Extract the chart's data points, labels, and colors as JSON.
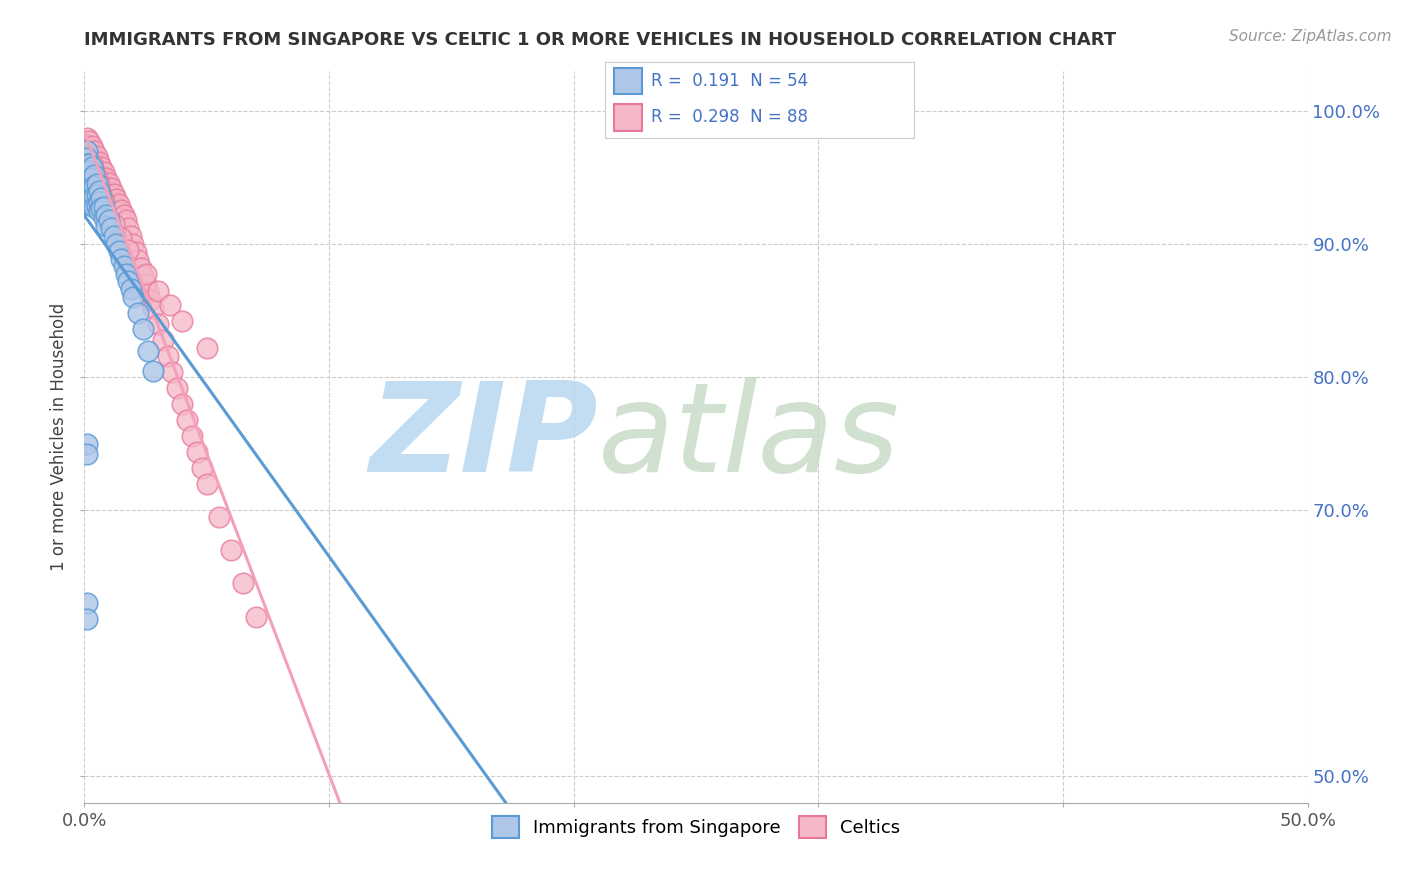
{
  "title": "IMMIGRANTS FROM SINGAPORE VS CELTIC 1 OR MORE VEHICLES IN HOUSEHOLD CORRELATION CHART",
  "source": "Source: ZipAtlas.com",
  "ylabel": "1 or more Vehicles in Household",
  "ytick_labels": [
    "100.0%",
    "90.0%",
    "80.0%",
    "70.0%",
    "50.0%"
  ],
  "ytick_positions": [
    1.0,
    0.9,
    0.8,
    0.7,
    0.5
  ],
  "xlim": [
    0.0,
    0.5
  ],
  "ylim": [
    0.48,
    1.03
  ],
  "xtick_positions": [
    0.0,
    0.1,
    0.2,
    0.3,
    0.4,
    0.5
  ],
  "xtick_labels": [
    "0.0%",
    "",
    "",
    "",
    "",
    "50.0%"
  ],
  "r_singapore": 0.191,
  "n_singapore": 54,
  "r_celtics": 0.298,
  "n_celtics": 88,
  "color_singapore": "#aec6e8",
  "color_celtics": "#f4b8c8",
  "color_singapore_edge": "#5b9bd5",
  "color_celtics_edge": "#e8789a",
  "trendline_singapore": "#5b9bd5",
  "trendline_celtics": "#f4a0b8",
  "legend_labels": [
    "Immigrants from Singapore",
    "Celtics"
  ],
  "watermark_zip": "ZIP",
  "watermark_atlas": "atlas",
  "watermark_color_zip": "#c8dff0",
  "watermark_color_atlas": "#d8e8c0",
  "background_color": "#ffffff",
  "sing_x": [
    0.001,
    0.001,
    0.001,
    0.001,
    0.001,
    0.001,
    0.001,
    0.001,
    0.001,
    0.002,
    0.002,
    0.002,
    0.002,
    0.002,
    0.002,
    0.003,
    0.003,
    0.003,
    0.003,
    0.004,
    0.004,
    0.004,
    0.004,
    0.005,
    0.005,
    0.005,
    0.006,
    0.006,
    0.006,
    0.007,
    0.007,
    0.008,
    0.008,
    0.009,
    0.009,
    0.01,
    0.011,
    0.012,
    0.013,
    0.014,
    0.015,
    0.016,
    0.017,
    0.018,
    0.019,
    0.02,
    0.022,
    0.024,
    0.026,
    0.028,
    0.001,
    0.001,
    0.001,
    0.001
  ],
  "sing_y": [
    0.97,
    0.965,
    0.96,
    0.955,
    0.95,
    0.945,
    0.94,
    0.935,
    0.93,
    0.96,
    0.955,
    0.948,
    0.942,
    0.936,
    0.93,
    0.958,
    0.95,
    0.942,
    0.935,
    0.952,
    0.944,
    0.936,
    0.928,
    0.945,
    0.937,
    0.929,
    0.94,
    0.932,
    0.925,
    0.935,
    0.927,
    0.928,
    0.92,
    0.922,
    0.914,
    0.918,
    0.912,
    0.906,
    0.9,
    0.895,
    0.889,
    0.884,
    0.878,
    0.872,
    0.866,
    0.86,
    0.848,
    0.836,
    0.82,
    0.805,
    0.75,
    0.742,
    0.63,
    0.618
  ],
  "celt_x": [
    0.001,
    0.001,
    0.001,
    0.001,
    0.001,
    0.001,
    0.002,
    0.002,
    0.002,
    0.002,
    0.002,
    0.003,
    0.003,
    0.003,
    0.003,
    0.004,
    0.004,
    0.004,
    0.004,
    0.005,
    0.005,
    0.005,
    0.005,
    0.006,
    0.006,
    0.006,
    0.007,
    0.007,
    0.007,
    0.008,
    0.008,
    0.009,
    0.009,
    0.01,
    0.01,
    0.011,
    0.011,
    0.012,
    0.012,
    0.013,
    0.013,
    0.014,
    0.014,
    0.015,
    0.015,
    0.016,
    0.016,
    0.017,
    0.018,
    0.019,
    0.02,
    0.021,
    0.022,
    0.023,
    0.024,
    0.025,
    0.026,
    0.027,
    0.028,
    0.03,
    0.032,
    0.034,
    0.036,
    0.038,
    0.04,
    0.042,
    0.044,
    0.046,
    0.048,
    0.05,
    0.055,
    0.06,
    0.065,
    0.07,
    0.003,
    0.004,
    0.005,
    0.006,
    0.007,
    0.008,
    0.012,
    0.015,
    0.018,
    0.025,
    0.03,
    0.035,
    0.04,
    0.05
  ],
  "celt_y": [
    0.98,
    0.975,
    0.97,
    0.965,
    0.96,
    0.955,
    0.978,
    0.972,
    0.966,
    0.96,
    0.954,
    0.974,
    0.968,
    0.962,
    0.956,
    0.97,
    0.964,
    0.958,
    0.952,
    0.966,
    0.96,
    0.954,
    0.948,
    0.962,
    0.956,
    0.95,
    0.958,
    0.952,
    0.946,
    0.954,
    0.948,
    0.95,
    0.944,
    0.946,
    0.94,
    0.942,
    0.936,
    0.938,
    0.932,
    0.934,
    0.928,
    0.93,
    0.924,
    0.926,
    0.92,
    0.922,
    0.916,
    0.918,
    0.912,
    0.906,
    0.9,
    0.894,
    0.888,
    0.882,
    0.876,
    0.87,
    0.864,
    0.858,
    0.852,
    0.84,
    0.828,
    0.816,
    0.804,
    0.792,
    0.78,
    0.768,
    0.756,
    0.744,
    0.732,
    0.72,
    0.695,
    0.67,
    0.645,
    0.62,
    0.96,
    0.955,
    0.95,
    0.945,
    0.938,
    0.932,
    0.915,
    0.905,
    0.896,
    0.878,
    0.865,
    0.854,
    0.842,
    0.822
  ]
}
